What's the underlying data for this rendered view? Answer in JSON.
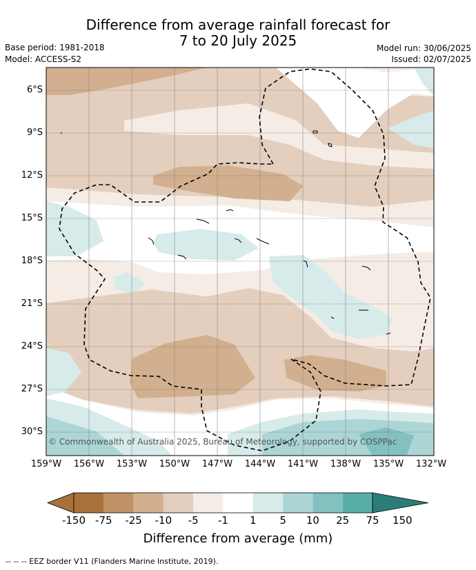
{
  "title": {
    "line1": "Difference from average rainfall forecast for",
    "line2": "7 to 20 July 2025"
  },
  "meta": {
    "base_period": "Base period: 1981-2018",
    "model": "Model: ACCESS-S2",
    "model_run": "Model run: 30/06/2025",
    "issued": "Issued: 02/07/2025"
  },
  "map": {
    "lat_labels": [
      "6°S",
      "9°S",
      "12°S",
      "15°S",
      "18°S",
      "21°S",
      "24°S",
      "27°S",
      "30°S"
    ],
    "lon_labels": [
      "159°W",
      "156°W",
      "153°W",
      "150°W",
      "147°W",
      "144°W",
      "141°W",
      "138°W",
      "135°W",
      "132°W"
    ],
    "copyright": "© Commonwealth of Australia 2025, Bureau of Meteorology, supported by COSPPac",
    "eez_style": "dashed"
  },
  "colorbar": {
    "labels": [
      "-150",
      "-75",
      "-25",
      "-10",
      "-5",
      "-1",
      "1",
      "5",
      "10",
      "25",
      "75",
      "150"
    ],
    "colors": [
      "#a8703a",
      "#bf9266",
      "#d2b08f",
      "#e4cfbe",
      "#f5ece6",
      "#ffffff",
      "#d6ebea",
      "#acd6d5",
      "#82c1bf",
      "#58ada9",
      "#2f9893",
      "#2a7e7a"
    ],
    "title": "Difference from average (mm)"
  },
  "legend": {
    "eez": "--  --  -- EEZ border V11 (Flanders Marine Institute, 2019)."
  }
}
